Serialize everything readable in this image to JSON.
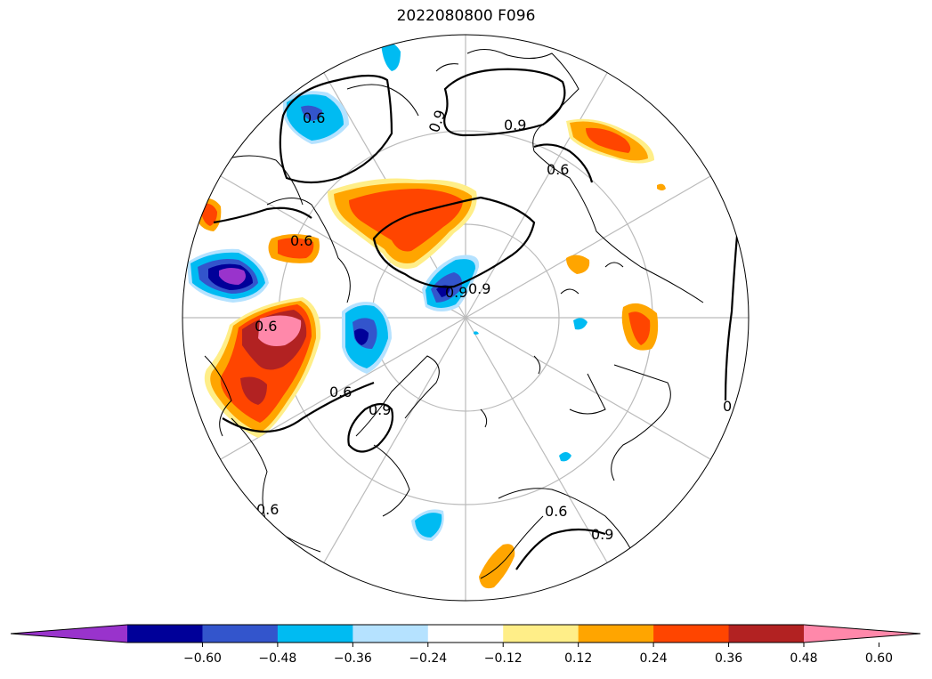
{
  "title": "2022080800 F096",
  "colorbar": {
    "colors": [
      "#9933cc",
      "#000099",
      "#3355cc",
      "#00bbf2",
      "#b5e2ff",
      "#ffffff",
      "#ffee88",
      "#ffa500",
      "#ff4500",
      "#b22222",
      "#ff88aa"
    ],
    "ticks": [
      "−0.60",
      "−0.48",
      "−0.36",
      "−0.24",
      "−0.12",
      "0.12",
      "0.24",
      "0.36",
      "0.48",
      "0.60"
    ]
  },
  "contour_labels": [
    "0.9",
    "0.9",
    "0.6",
    "0.6",
    "0.6",
    "0.9",
    "0.9",
    "0.6",
    "0.6",
    "0.9",
    "0.6",
    "0.6",
    "0.6",
    "0.9"
  ]
}
